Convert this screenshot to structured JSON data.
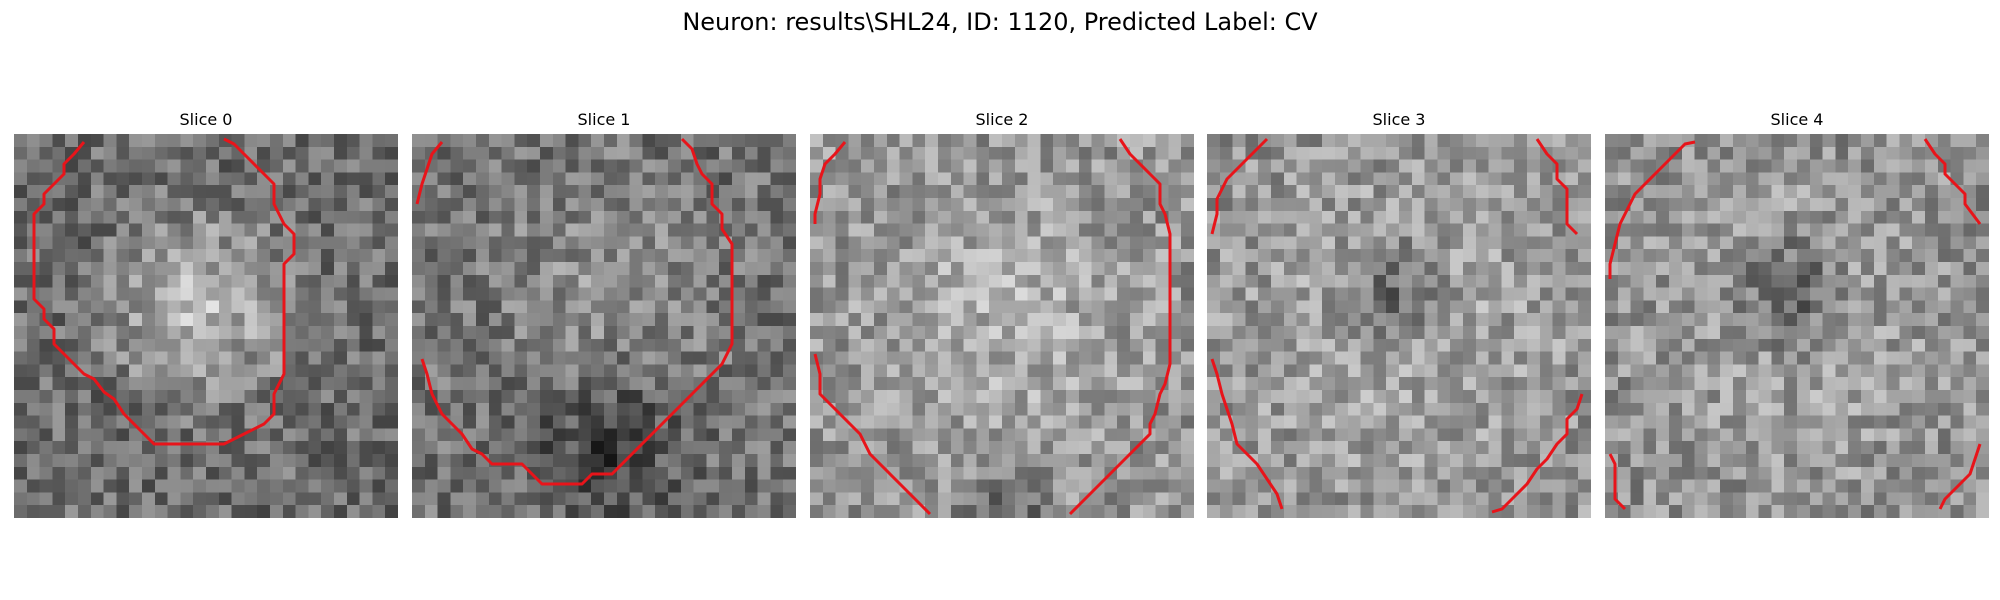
{
  "figure": {
    "title": "Neuron: results\\SHL24, ID: 1120, Predicted Label: CV",
    "contour_color": "#e8141a",
    "colormap": "gray"
  },
  "panels": [
    {
      "title": "Slice 0",
      "center_brightness": "bright",
      "dark_region": "none"
    },
    {
      "title": "Slice 1",
      "center_brightness": "medium",
      "dark_region": "bottom"
    },
    {
      "title": "Slice 2",
      "center_brightness": "bright",
      "dark_region": "bottom-edge"
    },
    {
      "title": "Slice 3",
      "center_brightness": "bright",
      "dark_region": "center"
    },
    {
      "title": "Slice 4",
      "center_brightness": "bright",
      "dark_region": "center"
    }
  ]
}
